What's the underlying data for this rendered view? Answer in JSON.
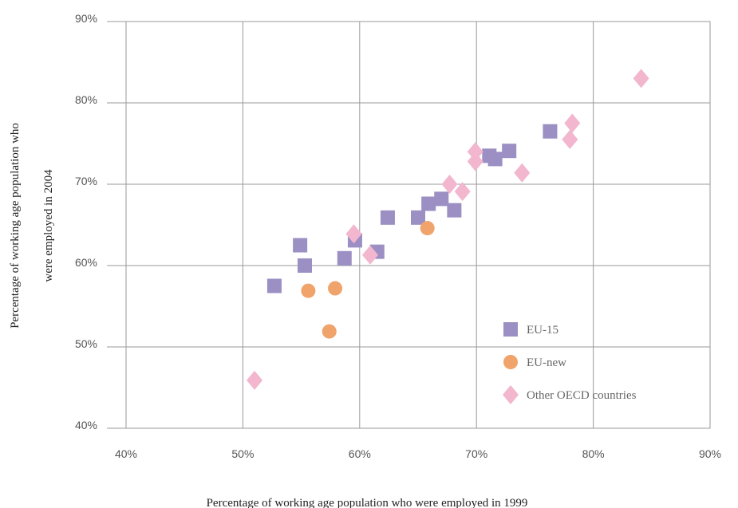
{
  "chart_data": {
    "type": "scatter",
    "title": "",
    "xlabel": "Percentage of working age population who were employed in 1999",
    "ylabel": [
      "Percentage of working age population who",
      "were employed in 2004"
    ],
    "xlim": [
      40,
      90
    ],
    "ylim": [
      40,
      90
    ],
    "x_ticks": [
      40,
      50,
      60,
      70,
      80,
      90
    ],
    "y_ticks": [
      40,
      50,
      60,
      70,
      80,
      90
    ],
    "x_tick_labels": [
      "40%",
      "50%",
      "60%",
      "70%",
      "80%",
      "90%"
    ],
    "y_tick_labels": [
      "40%",
      "50%",
      "60%",
      "70%",
      "80%",
      "90%"
    ],
    "grid": true,
    "legend_position": "bottom-right",
    "series": [
      {
        "name": "EU-15",
        "marker": "square",
        "color": "#9b8fc4",
        "points": [
          [
            52.7,
            57.5
          ],
          [
            54.9,
            62.5
          ],
          [
            55.3,
            60.0
          ],
          [
            58.7,
            60.9
          ],
          [
            59.6,
            63.1
          ],
          [
            61.5,
            61.7
          ],
          [
            62.4,
            65.9
          ],
          [
            65.0,
            65.9
          ],
          [
            65.9,
            67.6
          ],
          [
            67.0,
            68.2
          ],
          [
            68.1,
            66.8
          ],
          [
            71.1,
            73.5
          ],
          [
            71.6,
            73.1
          ],
          [
            72.8,
            74.1
          ],
          [
            76.3,
            76.5
          ]
        ]
      },
      {
        "name": "EU-new",
        "marker": "circle",
        "color": "#f0a36a",
        "points": [
          [
            55.6,
            56.9
          ],
          [
            57.4,
            51.9
          ],
          [
            57.9,
            57.2
          ],
          [
            65.8,
            64.6
          ]
        ]
      },
      {
        "name": "Other OECD countries",
        "marker": "diamond",
        "color": "#f2b6cf",
        "points": [
          [
            51.0,
            45.9
          ],
          [
            59.5,
            63.9
          ],
          [
            60.9,
            61.3
          ],
          [
            67.7,
            70.0
          ],
          [
            68.8,
            69.1
          ],
          [
            69.9,
            74.0
          ],
          [
            69.9,
            72.8
          ],
          [
            73.9,
            71.4
          ],
          [
            78.0,
            75.5
          ],
          [
            78.2,
            77.5
          ],
          [
            84.1,
            83.0
          ]
        ]
      }
    ]
  }
}
